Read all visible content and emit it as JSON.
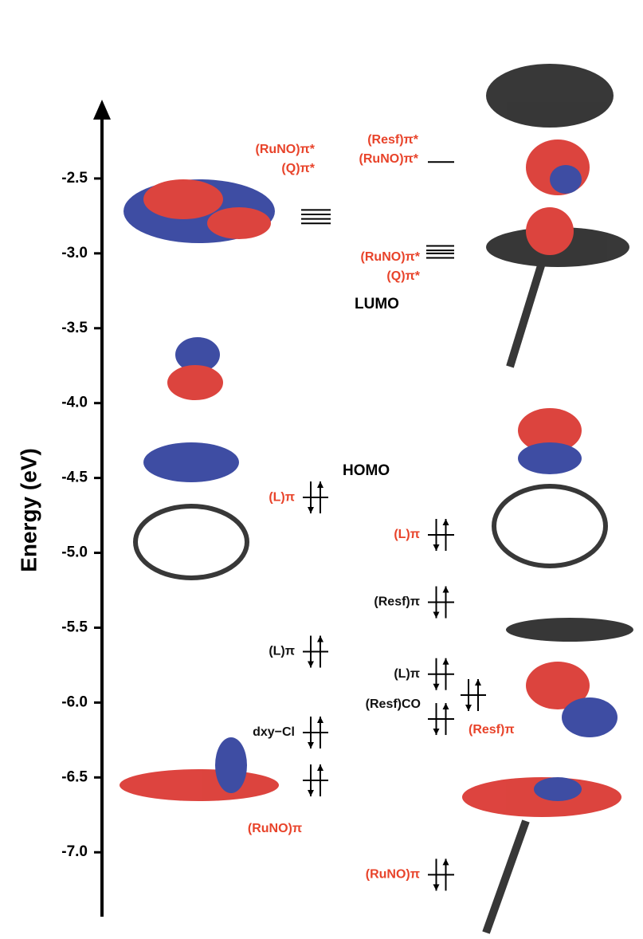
{
  "chart_data": {
    "type": "levels",
    "y_label": "Energy (eV)",
    "ylim": [
      -7.43,
      -2.0
    ],
    "yticks": [
      -2.5,
      {
        "value": -3.0,
        "label": "-3.0"
      },
      -3.5,
      {
        "value": -4.0,
        "label": "-4.0"
      },
      -4.5,
      {
        "value": -5.0,
        "label": "-5.0"
      },
      -5.5,
      {
        "value": -6.0,
        "label": "-6.0"
      },
      -6.5,
      {
        "value": -7.0,
        "label": "-7.0"
      }
    ],
    "annotations": [
      "LUMO",
      "HOMO"
    ],
    "levels": [
      {
        "energies": [
          -2.71,
          -2.74,
          -2.77,
          -2.8
        ],
        "labels": [
          "(RuNO)π*",
          "(Q)π*"
        ],
        "color": "#e8432a",
        "occupied": false
      },
      {
        "energies": [
          -2.39
        ],
        "labels": [
          "(Resf)π*",
          "(RuNO)π*"
        ],
        "color": "#e8432a",
        "occupied": false
      },
      {
        "energies": [
          -2.95,
          -2.98,
          -3.0,
          -3.03
        ],
        "labels": [
          "(RuNO)π*",
          "(Q)π*"
        ],
        "color": "#e8432a",
        "occupied": false
      },
      {
        "energies": [
          -4.63
        ],
        "labels": [
          "(L)π"
        ],
        "color": "#e8432a",
        "occupied": true
      },
      {
        "energies": [
          -4.88
        ],
        "labels": [
          "(L)π"
        ],
        "color": "#e8432a",
        "occupied": true
      },
      {
        "energies": [
          -5.33
        ],
        "labels": [
          "(Resf)π"
        ],
        "color": "#111111",
        "occupied": true
      },
      {
        "energies": [
          -5.66
        ],
        "labels": [
          "(L)π"
        ],
        "color": "#111111",
        "occupied": true
      },
      {
        "energies": [
          -5.81
        ],
        "labels": [
          "(L)π"
        ],
        "color": "#111111",
        "occupied": true
      },
      {
        "energies": [
          -6.11
        ],
        "labels": [
          "(Resf)CO"
        ],
        "color": "#111111",
        "occupied": true
      },
      {
        "energies": [
          -5.95
        ],
        "labels": [
          "(Resf)π"
        ],
        "color": "#e8432a",
        "occupied": true
      },
      {
        "energies": [
          -6.2
        ],
        "labels": [
          "dxy−Cl"
        ],
        "color": "#111111",
        "occupied": true
      },
      {
        "energies": [
          -6.52
        ],
        "labels": [
          "(RuNO)π"
        ],
        "color": "#e8432a",
        "occupied": true
      },
      {
        "energies": [
          -7.15
        ],
        "labels": [
          "(RuNO)π"
        ],
        "color": "#e8432a",
        "occupied": true
      }
    ]
  }
}
